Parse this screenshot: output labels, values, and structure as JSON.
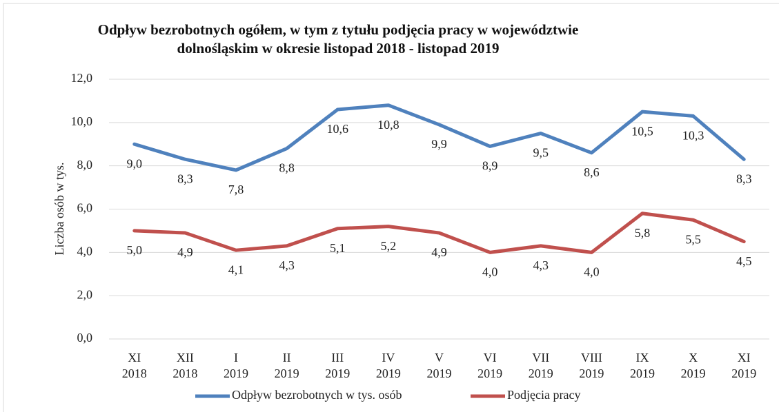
{
  "chart_data": {
    "type": "line",
    "title": "Odpływ bezrobotnych ogółem, w tym z tytułu podjęcia pracy  w województwie\ndolnośląskim w okresie listopad 2018 - listopad 2019",
    "y_axis_label": "Liczba osób w tys.",
    "categories": [
      "XI\n2018",
      "XII\n2018",
      "I\n2019",
      "II\n2019",
      "III\n2019",
      "IV\n2019",
      "V\n2019",
      "VI\n2019",
      "VII\n2019",
      "VIII\n2019",
      "IX\n2019",
      "X\n2019",
      "XI\n2019"
    ],
    "series": [
      {
        "name": "Odpływ bezrobotnych w tys. osób",
        "color": "#4f81bd",
        "values": [
          9.0,
          8.3,
          7.8,
          8.8,
          10.6,
          10.8,
          9.9,
          8.9,
          9.5,
          8.6,
          10.5,
          10.3,
          8.3
        ],
        "value_labels": [
          "9,0",
          "8,3",
          "7,8",
          "8,8",
          "10,6",
          "10,8",
          "9,9",
          "8,9",
          "9,5",
          "8,6",
          "10,5",
          "10,3",
          "8,3"
        ]
      },
      {
        "name": "Podjęcia pracy",
        "color": "#c0504d",
        "values": [
          5.0,
          4.9,
          4.1,
          4.3,
          5.1,
          5.2,
          4.9,
          4.0,
          4.3,
          4.0,
          5.8,
          5.5,
          4.5
        ],
        "value_labels": [
          "5,0",
          "4,9",
          "4,1",
          "4,3",
          "5,1",
          "5,2",
          "4,9",
          "4,0",
          "4,3",
          "4,0",
          "5,8",
          "5,5",
          "4,5"
        ]
      }
    ],
    "ylim": [
      0,
      12
    ],
    "yticks": [
      {
        "value": 0,
        "label": "0,0"
      },
      {
        "value": 2,
        "label": "2,0"
      },
      {
        "value": 4,
        "label": "4,0"
      },
      {
        "value": 6,
        "label": "6,0"
      },
      {
        "value": 8,
        "label": "8,0"
      },
      {
        "value": 10,
        "label": "10,0"
      },
      {
        "value": 12,
        "label": "12,0"
      }
    ],
    "grid": true,
    "legend": "bottom"
  }
}
